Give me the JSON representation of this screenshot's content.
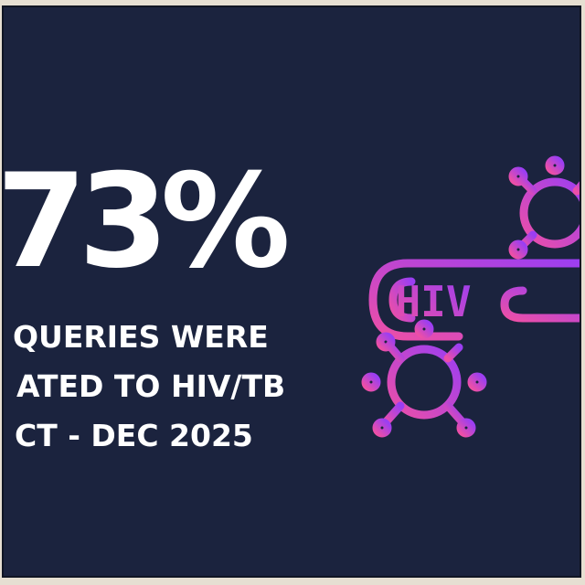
{
  "stat": {
    "value": "73%",
    "caption_lines": [
      "QUERIES WERE",
      "ATED TO HIV/TB",
      "CT - DEC 2025"
    ]
  },
  "illustration": {
    "icon": "hiv-test-tube-virus-icon",
    "label": "HIV",
    "gradient_start": "#ec4fa7",
    "gradient_end": "#9b3ef2"
  },
  "colors": {
    "background": "#1b233e",
    "text": "#ffffff",
    "frame": "#e6dfd2"
  }
}
